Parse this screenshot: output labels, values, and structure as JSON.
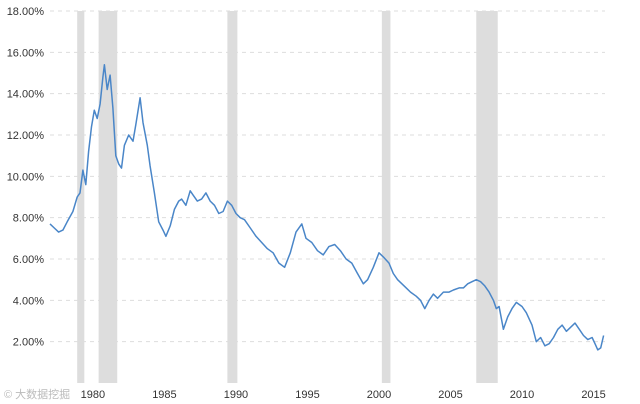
{
  "chart_data": {
    "type": "line",
    "title": "",
    "xlabel": "",
    "ylabel": "",
    "xlim": [
      1977.0,
      2015.8
    ],
    "ylim": [
      0,
      18
    ],
    "grid": true,
    "y_ticks": [
      {
        "value": 2,
        "label": "2.00%"
      },
      {
        "value": 4,
        "label": "4.00%"
      },
      {
        "value": 6,
        "label": "6.00%"
      },
      {
        "value": 8,
        "label": "8.00%"
      },
      {
        "value": 10,
        "label": "10.00%"
      },
      {
        "value": 12,
        "label": "12.00%"
      },
      {
        "value": 14,
        "label": "14.00%"
      },
      {
        "value": 16,
        "label": "16.00%"
      },
      {
        "value": 18,
        "label": "18.00%"
      }
    ],
    "x_ticks": [
      {
        "value": 1980,
        "label": "1980"
      },
      {
        "value": 1985,
        "label": "1985"
      },
      {
        "value": 1990,
        "label": "1990"
      },
      {
        "value": 1995,
        "label": "1995"
      },
      {
        "value": 2000,
        "label": "2000"
      },
      {
        "value": 2005,
        "label": "2005"
      },
      {
        "value": 2010,
        "label": "2010"
      },
      {
        "value": 2015,
        "label": "2015"
      }
    ],
    "recessions": [
      {
        "start": 1978.9,
        "end": 1979.4
      },
      {
        "start": 1980.4,
        "end": 1981.7
      },
      {
        "start": 1989.4,
        "end": 1990.1
      },
      {
        "start": 2000.2,
        "end": 2000.8
      },
      {
        "start": 2006.8,
        "end": 2008.3
      }
    ],
    "series": [
      {
        "color": "#4a86c8",
        "x": [
          1977.0,
          1977.3,
          1977.6,
          1977.9,
          1978.2,
          1978.6,
          1978.9,
          1979.1,
          1979.3,
          1979.5,
          1979.7,
          1979.9,
          1980.1,
          1980.3,
          1980.5,
          1980.7,
          1980.8,
          1981.0,
          1981.2,
          1981.4,
          1981.6,
          1981.8,
          1982.0,
          1982.2,
          1982.5,
          1982.8,
          1983.0,
          1983.3,
          1983.5,
          1983.8,
          1984.0,
          1984.3,
          1984.6,
          1984.9,
          1985.1,
          1985.4,
          1985.7,
          1986.0,
          1986.2,
          1986.5,
          1986.8,
          1987.0,
          1987.3,
          1987.6,
          1987.9,
          1988.2,
          1988.5,
          1988.8,
          1989.1,
          1989.4,
          1989.7,
          1990.0,
          1990.3,
          1990.6,
          1991.0,
          1991.4,
          1991.8,
          1992.2,
          1992.6,
          1993.0,
          1993.4,
          1993.8,
          1994.2,
          1994.6,
          1994.9,
          1995.3,
          1995.7,
          1996.1,
          1996.5,
          1996.9,
          1997.3,
          1997.7,
          1998.1,
          1998.5,
          1998.9,
          1999.2,
          1999.6,
          2000.0,
          2000.3,
          2000.7,
          2001.0,
          2001.3,
          2001.6,
          2001.9,
          2002.2,
          2002.6,
          2002.9,
          2003.2,
          2003.5,
          2003.8,
          2004.1,
          2004.5,
          2004.9,
          2005.2,
          2005.6,
          2005.9,
          2006.2,
          2006.5,
          2006.8,
          2007.1,
          2007.4,
          2007.7,
          2008.0,
          2008.2,
          2008.4,
          2008.7,
          2009.0,
          2009.3,
          2009.6,
          2010.0,
          2010.3,
          2010.7,
          2011.0,
          2011.3,
          2011.6,
          2011.9,
          2012.2,
          2012.5,
          2012.8,
          2013.1,
          2013.4,
          2013.7,
          2014.0,
          2014.3,
          2014.6,
          2014.9,
          2015.1,
          2015.3,
          2015.5,
          2015.7
        ],
        "values": [
          7.7,
          7.5,
          7.3,
          7.4,
          7.8,
          8.3,
          9.0,
          9.2,
          10.3,
          9.6,
          11.2,
          12.4,
          13.2,
          12.8,
          13.5,
          14.8,
          15.4,
          14.2,
          14.9,
          13.3,
          11.0,
          10.6,
          10.4,
          11.5,
          12.0,
          11.7,
          12.5,
          13.8,
          12.6,
          11.5,
          10.5,
          9.2,
          7.8,
          7.4,
          7.1,
          7.6,
          8.4,
          8.8,
          8.9,
          8.6,
          9.3,
          9.1,
          8.8,
          8.9,
          9.2,
          8.8,
          8.6,
          8.2,
          8.3,
          8.8,
          8.6,
          8.2,
          8.0,
          7.9,
          7.5,
          7.1,
          6.8,
          6.5,
          6.3,
          5.8,
          5.6,
          6.3,
          7.3,
          7.7,
          7.0,
          6.8,
          6.4,
          6.2,
          6.6,
          6.7,
          6.4,
          6.0,
          5.8,
          5.3,
          4.8,
          5.0,
          5.6,
          6.3,
          6.1,
          5.8,
          5.3,
          5.0,
          4.8,
          4.6,
          4.4,
          4.2,
          4.0,
          3.6,
          4.0,
          4.3,
          4.1,
          4.4,
          4.4,
          4.5,
          4.6,
          4.6,
          4.8,
          4.9,
          5.0,
          4.9,
          4.7,
          4.4,
          4.0,
          3.6,
          3.7,
          2.6,
          3.2,
          3.6,
          3.9,
          3.7,
          3.4,
          2.8,
          2.0,
          2.2,
          1.8,
          1.9,
          2.2,
          2.6,
          2.8,
          2.5,
          2.7,
          2.9,
          2.6,
          2.3,
          2.1,
          2.2,
          1.9,
          1.6,
          1.7,
          2.3
        ]
      }
    ]
  },
  "watermark": {
    "text": "© 大数据挖掘"
  }
}
